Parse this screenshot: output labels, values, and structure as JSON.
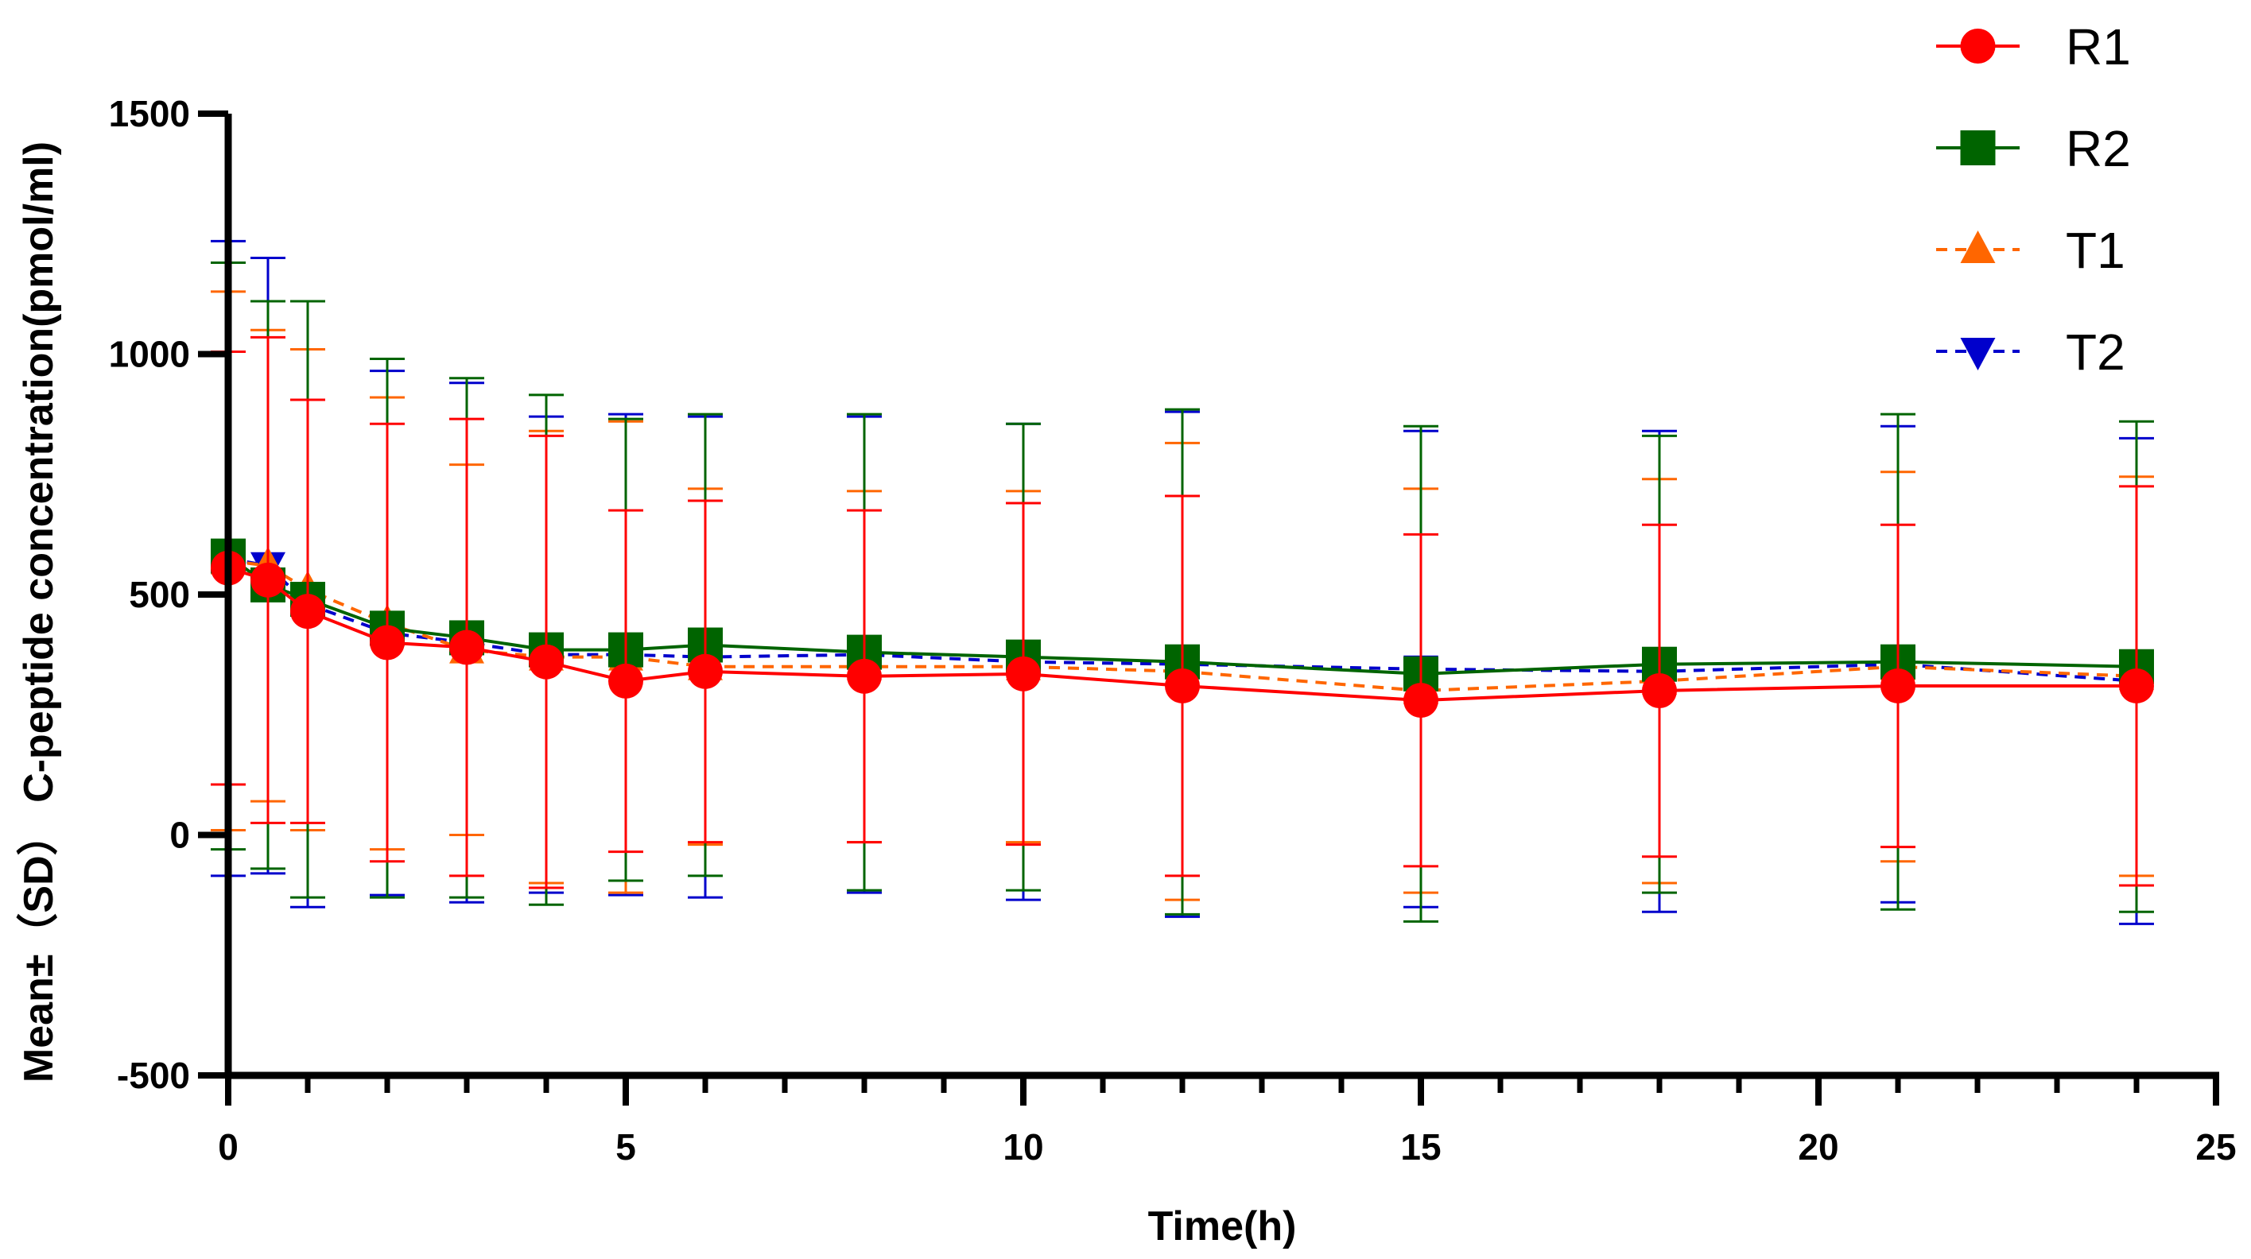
{
  "chart_data": {
    "type": "line",
    "title": "",
    "xlabel": "Time(h)",
    "ylabel": "Mean±（SD） C-peptide concentration(pmol/ml)",
    "xlim": [
      0,
      25
    ],
    "ylim": [
      -500,
      1500
    ],
    "x_major_ticks": [
      0,
      5,
      10,
      15,
      20,
      25
    ],
    "x_minor_step": 1,
    "y_ticks": [
      -500,
      0,
      500,
      1000,
      1500
    ],
    "legend_position": "top-right",
    "x": [
      0,
      0.5,
      1,
      2,
      3,
      4,
      5,
      6,
      8,
      10,
      12,
      15,
      18,
      21,
      24
    ],
    "series": [
      {
        "name": "R1",
        "color": "#ff0000",
        "marker": "circle",
        "line": "solid",
        "values": [
          555,
          530,
          465,
          400,
          390,
          360,
          320,
          340,
          330,
          335,
          310,
          280,
          300,
          310,
          310
        ],
        "sd": [
          450,
          505,
          440,
          455,
          475,
          470,
          355,
          355,
          345,
          355,
          395,
          345,
          345,
          335,
          415
        ]
      },
      {
        "name": "R2",
        "color": "#006400",
        "marker": "square",
        "line": "solid",
        "values": [
          580,
          520,
          490,
          430,
          410,
          385,
          385,
          395,
          380,
          370,
          360,
          335,
          355,
          360,
          350
        ],
        "sd": [
          610,
          590,
          620,
          560,
          540,
          530,
          480,
          480,
          495,
          485,
          525,
          515,
          475,
          515,
          510
        ]
      },
      {
        "name": "T1",
        "color": "#ff6600",
        "marker": "triangle-up",
        "line": "dashed",
        "values": [
          570,
          560,
          510,
          440,
          385,
          370,
          370,
          350,
          350,
          350,
          340,
          300,
          320,
          350,
          330
        ],
        "sd": [
          560,
          490,
          500,
          470,
          385,
          470,
          490,
          370,
          365,
          365,
          475,
          420,
          420,
          405,
          415
        ]
      },
      {
        "name": "T2",
        "color": "#0000cc",
        "marker": "triangle-down",
        "line": "dashed",
        "values": [
          575,
          560,
          480,
          420,
          400,
          375,
          375,
          370,
          375,
          360,
          355,
          345,
          340,
          355,
          320
        ],
        "sd": [
          660,
          640,
          630,
          545,
          540,
          495,
          500,
          500,
          495,
          495,
          525,
          495,
          500,
          495,
          505
        ]
      }
    ]
  }
}
